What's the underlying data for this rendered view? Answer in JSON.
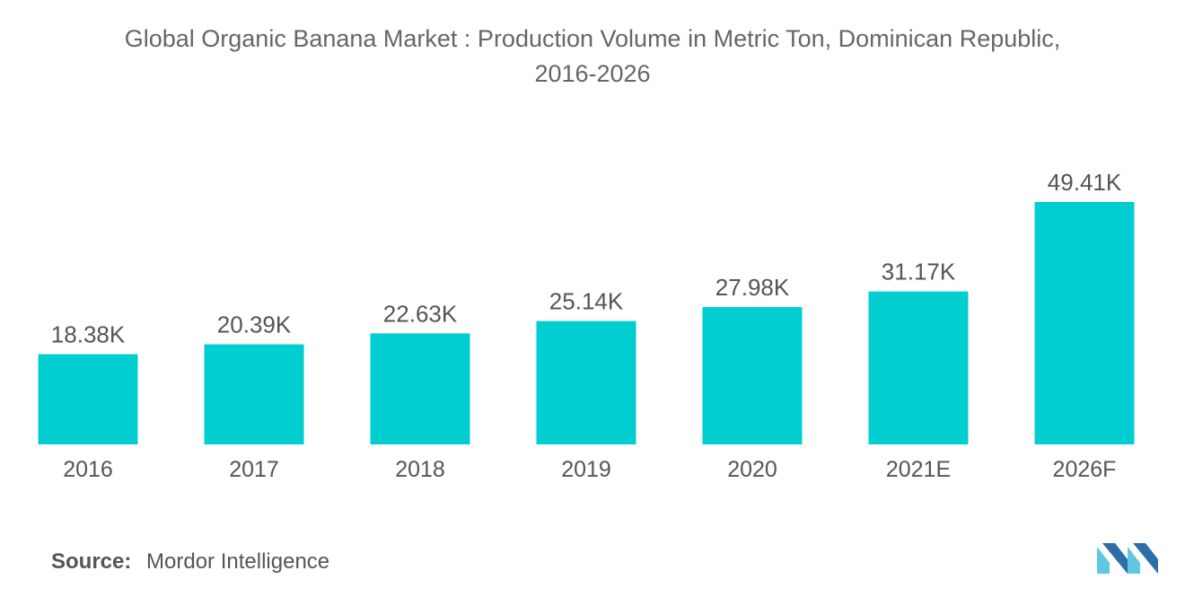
{
  "chart_data": {
    "type": "bar",
    "title_line1": "Global Organic Banana Market : Production Volume in Metric Ton, Dominican Republic,",
    "title_line2": "2016-2026",
    "categories": [
      "2016",
      "2017",
      "2018",
      "2019",
      "2020",
      "2021E",
      "2026F"
    ],
    "values": [
      18.38,
      20.39,
      22.63,
      25.14,
      27.98,
      31.17,
      49.41
    ],
    "value_labels": [
      "18.38K",
      "20.39K",
      "22.63K",
      "25.14K",
      "27.98K",
      "31.17K",
      "49.41K"
    ],
    "unit": "K",
    "xlabel": "",
    "ylabel": "",
    "ylim": [
      0,
      49.41
    ],
    "grid": false,
    "bar_color": "#00ced1"
  },
  "footer": {
    "source_key": "Source:",
    "source_value": "Mordor Intelligence"
  },
  "logo": {
    "icon": "mordor-intelligence-logo-icon",
    "color_light": "#5ec8e0",
    "color_dark": "#2a6fa8"
  }
}
